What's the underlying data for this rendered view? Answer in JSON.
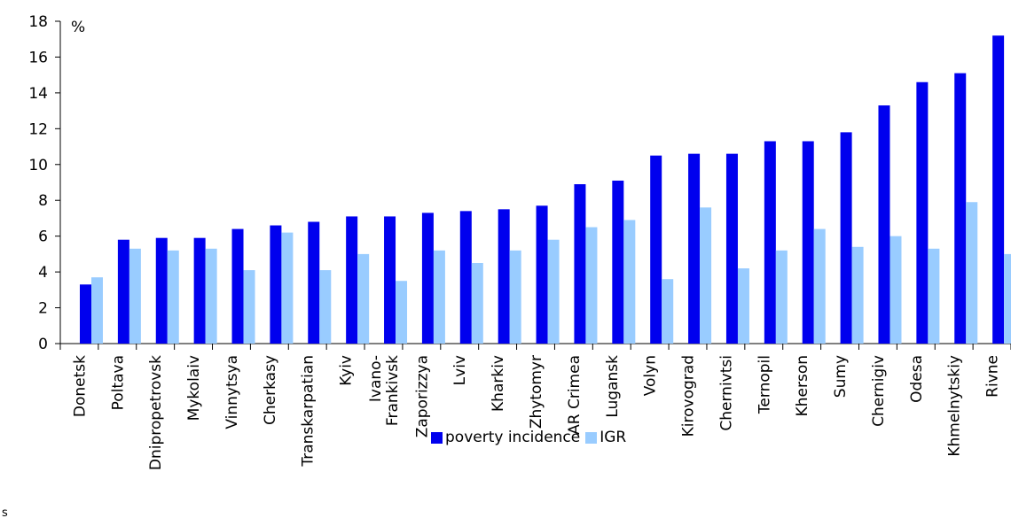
{
  "chart_data": {
    "type": "bar",
    "unit_label": "%",
    "ylim": [
      0,
      18
    ],
    "yticks": [
      0,
      2,
      4,
      6,
      8,
      10,
      12,
      14,
      16,
      18
    ],
    "grid": false,
    "legend_position": "bottom",
    "categories": [
      "Donetsk",
      "Poltava",
      "Dnipropetrovsk",
      "Mykolaiv",
      "Vinnytsya",
      "Cherkasy",
      "Transkarpatian",
      "Kyiv",
      "Ivano-Frankivsk",
      "Zaporizzya",
      "Lviv",
      "Kharkiv",
      "Zhytomyr",
      "AR Crimea",
      "Lugansk",
      "Volyn",
      "Kirovograd",
      "Chernivtsi",
      "Ternopil",
      "Kherson",
      "Sumy",
      "Chernigiv",
      "Odesa",
      "Khmelnytskiy",
      "Rivne"
    ],
    "category_label_lines": [
      [
        "Donetsk"
      ],
      [
        "Poltava"
      ],
      [
        "Dnipropetrovsk"
      ],
      [
        "Mykolaiv"
      ],
      [
        "Vinnytsya"
      ],
      [
        "Cherkasy"
      ],
      [
        "Transkarpatian"
      ],
      [
        "Kyiv"
      ],
      [
        "Ivano-",
        "Frankivsk"
      ],
      [
        "Zaporizzya"
      ],
      [
        "Lviv"
      ],
      [
        "Kharkiv"
      ],
      [
        "Zhytomyr"
      ],
      [
        "AR Crimea"
      ],
      [
        "Lugansk"
      ],
      [
        "Volyn"
      ],
      [
        "Kirovograd"
      ],
      [
        "Chernivtsi"
      ],
      [
        "Ternopil"
      ],
      [
        "Kherson"
      ],
      [
        "Sumy"
      ],
      [
        "Chernigiv"
      ],
      [
        "Odesa"
      ],
      [
        "Khmelnytskiy"
      ],
      [
        "Rivne"
      ]
    ],
    "series": [
      {
        "name": "poverty incidence",
        "color": "#0000ee",
        "values": [
          3.3,
          5.8,
          5.9,
          5.9,
          6.4,
          6.6,
          6.8,
          7.1,
          7.1,
          7.3,
          7.4,
          7.5,
          7.7,
          8.9,
          9.1,
          10.5,
          10.6,
          10.6,
          11.3,
          11.3,
          11.8,
          13.3,
          14.6,
          15.1,
          17.2
        ]
      },
      {
        "name": "IGR",
        "color": "#99ccff",
        "values": [
          3.7,
          5.3,
          5.2,
          5.3,
          4.1,
          6.2,
          4.1,
          5.0,
          3.5,
          5.2,
          4.5,
          5.2,
          5.8,
          6.5,
          6.9,
          3.6,
          7.6,
          4.2,
          5.2,
          6.4,
          5.4,
          6.0,
          5.3,
          7.9,
          5.0
        ]
      }
    ]
  },
  "stray_mark": "s"
}
